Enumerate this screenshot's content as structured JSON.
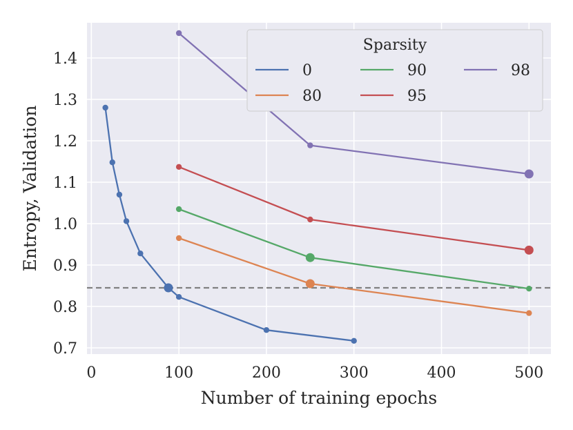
{
  "chart_data": {
    "type": "line",
    "title": "",
    "xlabel": "Number of training epochs",
    "ylabel": "Entropy, Validation",
    "xlim": [
      -5,
      525
    ],
    "ylim": [
      0.685,
      1.485
    ],
    "x_ticks": [
      0,
      100,
      200,
      300,
      400,
      500
    ],
    "y_ticks": [
      0.7,
      0.8,
      0.9,
      1.0,
      1.1,
      1.2,
      1.3,
      1.4
    ],
    "grid": true,
    "reference_line": {
      "y": 0.845,
      "style": "dashed",
      "color": "#808080"
    },
    "legend": {
      "title": "Sparsity",
      "placement": "top-right",
      "columns": 3
    },
    "series": [
      {
        "name": "0",
        "color": "#4c72b0",
        "x": [
          16,
          24,
          32,
          40,
          56,
          88,
          100,
          200,
          300
        ],
        "y": [
          1.28,
          1.148,
          1.07,
          1.006,
          0.928,
          0.845,
          0.823,
          0.743,
          0.717
        ],
        "highlight_index": 5
      },
      {
        "name": "80",
        "color": "#dd8452",
        "x": [
          100,
          250,
          500
        ],
        "y": [
          0.965,
          0.855,
          0.784
        ],
        "highlight_index": 1
      },
      {
        "name": "90",
        "color": "#55a868",
        "x": [
          100,
          250,
          500
        ],
        "y": [
          1.035,
          0.918,
          0.843
        ],
        "highlight_index": 1
      },
      {
        "name": "95",
        "color": "#c44e52",
        "x": [
          100,
          250,
          500
        ],
        "y": [
          1.137,
          1.01,
          0.936
        ],
        "highlight_index": 2
      },
      {
        "name": "98",
        "color": "#8172b3",
        "x": [
          100,
          250,
          500
        ],
        "y": [
          1.46,
          1.189,
          1.12
        ],
        "highlight_index": 2
      }
    ]
  }
}
